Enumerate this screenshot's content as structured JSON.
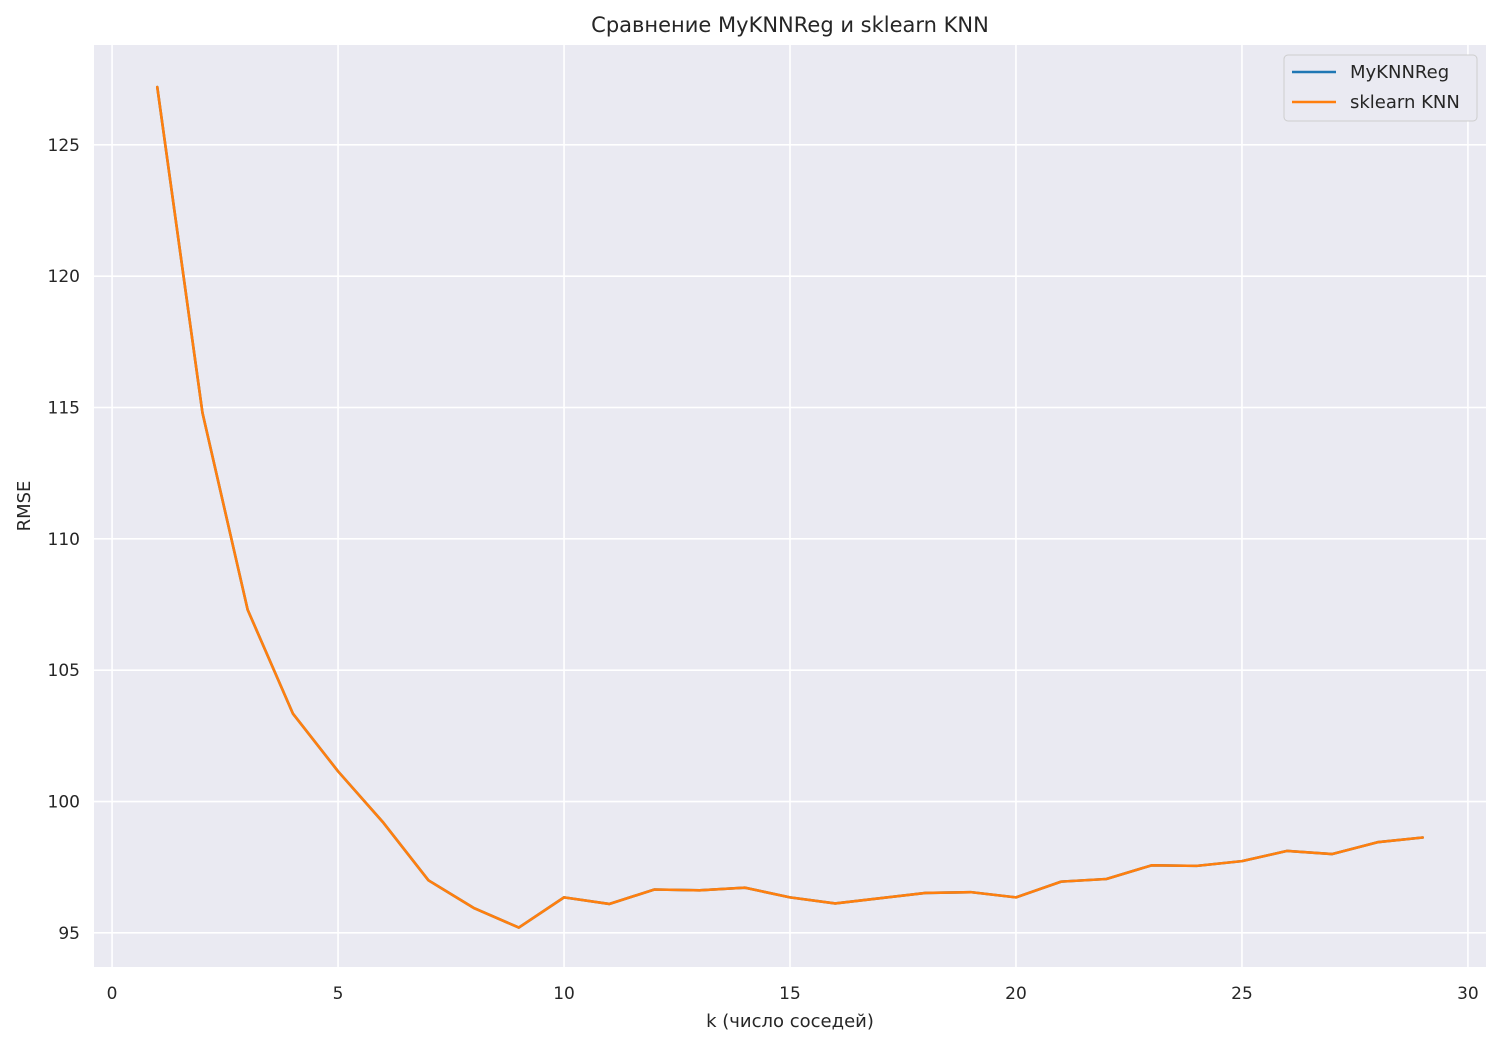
{
  "chart_data": {
    "type": "line",
    "title": "Сравнение MyKNNReg и sklearn KNN",
    "xlabel": "k (число соседей)",
    "ylabel": "RMSE",
    "xlim": [
      -0.4,
      30.4
    ],
    "ylim": [
      93.7,
      128.8
    ],
    "xticks": [
      0,
      5,
      10,
      15,
      20,
      25,
      30
    ],
    "yticks": [
      95,
      100,
      105,
      110,
      115,
      120,
      125
    ],
    "xtick_labels": [
      "0",
      "5",
      "10",
      "15",
      "20",
      "25",
      "30"
    ],
    "ytick_labels": [
      "95",
      "100",
      "105",
      "110",
      "115",
      "120",
      "125"
    ],
    "grid": true,
    "legend_position": "top-right",
    "x": [
      1,
      2,
      3,
      4,
      5,
      6,
      7,
      8,
      9,
      10,
      11,
      12,
      13,
      14,
      15,
      16,
      17,
      18,
      19,
      20,
      21,
      22,
      23,
      24,
      25,
      26,
      27,
      28,
      29
    ],
    "series": [
      {
        "name": "MyKNNReg",
        "color": "#1f77b4",
        "values": [
          127.2,
          114.8,
          107.3,
          103.35,
          101.15,
          99.2,
          97.0,
          95.95,
          95.2,
          96.35,
          96.1,
          96.65,
          96.62,
          96.72,
          96.35,
          96.12,
          96.32,
          96.52,
          96.55,
          96.35,
          96.95,
          97.05,
          97.57,
          97.55,
          97.73,
          98.12,
          98.0,
          98.45,
          98.63
        ]
      },
      {
        "name": "sklearn KNN",
        "color": "#ff7f0e",
        "values": [
          127.2,
          114.8,
          107.3,
          103.35,
          101.15,
          99.2,
          97.0,
          95.95,
          95.2,
          96.35,
          96.1,
          96.65,
          96.62,
          96.72,
          96.35,
          96.12,
          96.32,
          96.52,
          96.55,
          96.35,
          96.95,
          97.05,
          97.57,
          97.55,
          97.73,
          98.12,
          98.0,
          98.45,
          98.63
        ]
      }
    ]
  }
}
